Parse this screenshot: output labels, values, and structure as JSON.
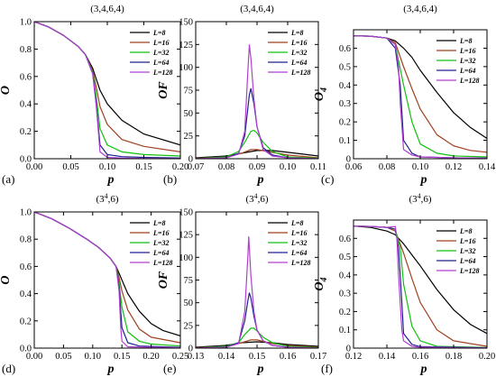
{
  "series_names": [
    "L=8",
    "L=16",
    "L=32",
    "L=64",
    "L=128"
  ],
  "series_colors": [
    "#000000",
    "#a0401f",
    "#10c010",
    "#202090",
    "#b040d0"
  ],
  "chart_data": [
    {
      "panel_label": "(a)",
      "title_base": "(3,4,6,4)",
      "title_sup": "",
      "type": "line",
      "xlabel": "p",
      "ylabel": "O",
      "xlim": [
        0.0,
        0.2
      ],
      "ylim": [
        0.0,
        1.0
      ],
      "xticks": [
        "0.00",
        "0.05",
        "0.10",
        "0.15",
        "0.20"
      ],
      "yticks": [
        "0.0",
        "0.2",
        "0.4",
        "0.6",
        "0.8",
        "1.0"
      ],
      "series": [
        {
          "name": "L=8",
          "x": [
            0,
            0.02,
            0.04,
            0.06,
            0.07,
            0.08,
            0.085,
            0.09,
            0.1,
            0.12,
            0.15,
            0.2
          ],
          "y": [
            1.0,
            0.96,
            0.9,
            0.82,
            0.76,
            0.66,
            0.58,
            0.5,
            0.4,
            0.28,
            0.18,
            0.1
          ]
        },
        {
          "name": "L=16",
          "x": [
            0,
            0.02,
            0.04,
            0.06,
            0.07,
            0.08,
            0.085,
            0.09,
            0.1,
            0.12,
            0.15,
            0.2
          ],
          "y": [
            1.0,
            0.96,
            0.9,
            0.82,
            0.76,
            0.64,
            0.52,
            0.38,
            0.25,
            0.14,
            0.09,
            0.05
          ]
        },
        {
          "name": "L=32",
          "x": [
            0,
            0.02,
            0.04,
            0.06,
            0.07,
            0.08,
            0.085,
            0.09,
            0.1,
            0.12,
            0.15,
            0.2
          ],
          "y": [
            1.0,
            0.96,
            0.9,
            0.82,
            0.76,
            0.63,
            0.45,
            0.22,
            0.1,
            0.05,
            0.03,
            0.02
          ]
        },
        {
          "name": "L=64",
          "x": [
            0,
            0.02,
            0.04,
            0.06,
            0.07,
            0.08,
            0.085,
            0.09,
            0.1,
            0.12,
            0.15,
            0.2
          ],
          "y": [
            1.0,
            0.96,
            0.9,
            0.82,
            0.76,
            0.62,
            0.4,
            0.1,
            0.03,
            0.015,
            0.01,
            0.005
          ]
        },
        {
          "name": "L=128",
          "x": [
            0,
            0.02,
            0.04,
            0.06,
            0.07,
            0.08,
            0.085,
            0.09,
            0.1,
            0.12,
            0.15,
            0.2
          ],
          "y": [
            1.0,
            0.96,
            0.9,
            0.82,
            0.76,
            0.62,
            0.38,
            0.05,
            0.01,
            0.005,
            0.002,
            0.001
          ]
        }
      ]
    },
    {
      "panel_label": "(b)",
      "title_base": "(3,4,6,4)",
      "title_sup": "",
      "type": "line",
      "xlabel": "p",
      "ylabel": "OF",
      "xlim": [
        0.07,
        0.11
      ],
      "ylim": [
        0,
        150
      ],
      "xticks": [
        "0.07",
        "0.08",
        "0.09",
        "0.10",
        "0.11"
      ],
      "yticks": [
        "0",
        "25",
        "50",
        "75",
        "100",
        "125",
        "150"
      ],
      "series": [
        {
          "name": "L=8",
          "x": [
            0.07,
            0.08,
            0.085,
            0.09,
            0.095,
            0.1,
            0.105,
            0.11
          ],
          "y": [
            1,
            3,
            6,
            9,
            9,
            7,
            5,
            3
          ]
        },
        {
          "name": "L=16",
          "x": [
            0.07,
            0.08,
            0.085,
            0.088,
            0.09,
            0.095,
            0.1,
            0.11
          ],
          "y": [
            0.5,
            2,
            6,
            10,
            10,
            7,
            4,
            1
          ]
        },
        {
          "name": "L=32",
          "x": [
            0.07,
            0.08,
            0.084,
            0.086,
            0.088,
            0.089,
            0.09,
            0.092,
            0.095,
            0.1,
            0.11
          ],
          "y": [
            0,
            2,
            8,
            18,
            30,
            31,
            28,
            18,
            8,
            2,
            0.5
          ]
        },
        {
          "name": "L=64",
          "x": [
            0.07,
            0.08,
            0.084,
            0.086,
            0.0875,
            0.088,
            0.089,
            0.09,
            0.092,
            0.095,
            0.1,
            0.11
          ],
          "y": [
            0,
            1,
            6,
            25,
            70,
            77,
            60,
            35,
            12,
            4,
            1,
            0
          ]
        },
        {
          "name": "L=128",
          "x": [
            0.07,
            0.08,
            0.084,
            0.086,
            0.087,
            0.0875,
            0.088,
            0.089,
            0.09,
            0.092,
            0.095,
            0.1,
            0.11
          ],
          "y": [
            0,
            1,
            5,
            30,
            95,
            125,
            110,
            65,
            35,
            10,
            3,
            1,
            0
          ]
        }
      ]
    },
    {
      "panel_label": "(c)",
      "title_base": "(3,4,6,4)",
      "title_sup": "",
      "type": "line",
      "xlabel": "p",
      "ylabel": "O",
      "ylabel_sub": "4",
      "xlim": [
        0.06,
        0.14
      ],
      "ylim": [
        0.0,
        0.7
      ],
      "xticks": [
        "0.06",
        "0.08",
        "0.10",
        "0.12",
        "0.14"
      ],
      "yticks": [
        "0",
        "0.1",
        "0.2",
        "0.3",
        "0.4",
        "0.5",
        "0.6"
      ],
      "series": [
        {
          "name": "L=8",
          "x": [
            0.06,
            0.07,
            0.08,
            0.085,
            0.09,
            0.095,
            0.1,
            0.11,
            0.12,
            0.13,
            0.14
          ],
          "y": [
            0.667,
            0.665,
            0.655,
            0.64,
            0.6,
            0.55,
            0.48,
            0.36,
            0.25,
            0.17,
            0.11
          ]
        },
        {
          "name": "L=16",
          "x": [
            0.06,
            0.07,
            0.08,
            0.085,
            0.09,
            0.095,
            0.1,
            0.11,
            0.12,
            0.13,
            0.14
          ],
          "y": [
            0.667,
            0.665,
            0.655,
            0.63,
            0.5,
            0.38,
            0.27,
            0.13,
            0.07,
            0.045,
            0.035
          ]
        },
        {
          "name": "L=32",
          "x": [
            0.06,
            0.07,
            0.08,
            0.085,
            0.09,
            0.095,
            0.1,
            0.11,
            0.12,
            0.14
          ],
          "y": [
            0.667,
            0.665,
            0.655,
            0.62,
            0.4,
            0.2,
            0.08,
            0.03,
            0.015,
            0.01
          ]
        },
        {
          "name": "L=64",
          "x": [
            0.06,
            0.07,
            0.08,
            0.085,
            0.088,
            0.09,
            0.095,
            0.1,
            0.12,
            0.14
          ],
          "y": [
            0.667,
            0.665,
            0.655,
            0.6,
            0.4,
            0.1,
            0.03,
            0.01,
            0.005,
            0.003
          ]
        },
        {
          "name": "L=128",
          "x": [
            0.06,
            0.07,
            0.08,
            0.085,
            0.087,
            0.088,
            0.09,
            0.095,
            0.1,
            0.12,
            0.14
          ],
          "y": [
            0.667,
            0.665,
            0.655,
            0.62,
            0.5,
            0.3,
            0.05,
            0.02,
            0.01,
            0.005,
            0.003
          ]
        }
      ]
    },
    {
      "panel_label": "(d)",
      "title_base": "(3",
      "title_sup": "4",
      "title_tail": ",6)",
      "type": "line",
      "xlabel": "p",
      "ylabel": "O",
      "xlim": [
        0.0,
        0.25
      ],
      "ylim": [
        0.0,
        1.0
      ],
      "xticks": [
        "0.00",
        "0.05",
        "0.10",
        "0.15",
        "0.20",
        "0.25"
      ],
      "yticks": [
        "0.0",
        "0.2",
        "0.4",
        "0.6",
        "0.8",
        "1.0"
      ],
      "series": [
        {
          "name": "L=8",
          "x": [
            0,
            0.03,
            0.06,
            0.09,
            0.11,
            0.13,
            0.14,
            0.145,
            0.15,
            0.16,
            0.18,
            0.2,
            0.22,
            0.25
          ],
          "y": [
            1.0,
            0.95,
            0.88,
            0.8,
            0.74,
            0.66,
            0.6,
            0.55,
            0.5,
            0.4,
            0.27,
            0.18,
            0.13,
            0.09
          ]
        },
        {
          "name": "L=16",
          "x": [
            0,
            0.03,
            0.06,
            0.09,
            0.11,
            0.13,
            0.14,
            0.145,
            0.15,
            0.16,
            0.18,
            0.2,
            0.25
          ],
          "y": [
            1.0,
            0.95,
            0.88,
            0.8,
            0.74,
            0.66,
            0.6,
            0.52,
            0.42,
            0.28,
            0.14,
            0.08,
            0.04
          ]
        },
        {
          "name": "L=32",
          "x": [
            0,
            0.03,
            0.06,
            0.09,
            0.11,
            0.13,
            0.14,
            0.145,
            0.15,
            0.16,
            0.18,
            0.2,
            0.25
          ],
          "y": [
            1.0,
            0.95,
            0.88,
            0.8,
            0.74,
            0.66,
            0.6,
            0.48,
            0.3,
            0.12,
            0.05,
            0.03,
            0.015
          ]
        },
        {
          "name": "L=64",
          "x": [
            0,
            0.03,
            0.06,
            0.09,
            0.11,
            0.13,
            0.14,
            0.145,
            0.15,
            0.16,
            0.18,
            0.25
          ],
          "y": [
            1.0,
            0.95,
            0.88,
            0.8,
            0.74,
            0.66,
            0.6,
            0.45,
            0.15,
            0.04,
            0.015,
            0.005
          ]
        },
        {
          "name": "L=128",
          "x": [
            0,
            0.03,
            0.06,
            0.09,
            0.11,
            0.13,
            0.14,
            0.145,
            0.148,
            0.15,
            0.16,
            0.25
          ],
          "y": [
            1.0,
            0.95,
            0.88,
            0.8,
            0.74,
            0.66,
            0.6,
            0.42,
            0.15,
            0.05,
            0.01,
            0.002
          ]
        }
      ]
    },
    {
      "panel_label": "(e)",
      "title_base": "(3",
      "title_sup": "4",
      "title_tail": ",6)",
      "type": "line",
      "xlabel": "p",
      "ylabel": "OF",
      "xlim": [
        0.13,
        0.17
      ],
      "ylim": [
        0,
        150
      ],
      "xticks": [
        "0.13",
        "0.14",
        "0.15",
        "0.16",
        "0.17"
      ],
      "yticks": [
        "0",
        "25",
        "50",
        "75",
        "100",
        "125",
        "150"
      ],
      "series": [
        {
          "name": "L=8",
          "x": [
            0.13,
            0.14,
            0.145,
            0.15,
            0.155,
            0.16,
            0.17
          ],
          "y": [
            1,
            3,
            6,
            7,
            6,
            4,
            2
          ]
        },
        {
          "name": "L=16",
          "x": [
            0.13,
            0.14,
            0.145,
            0.148,
            0.15,
            0.155,
            0.16,
            0.17
          ],
          "y": [
            0.5,
            2,
            6,
            9,
            9,
            5,
            3,
            1
          ]
        },
        {
          "name": "L=32",
          "x": [
            0.13,
            0.14,
            0.144,
            0.146,
            0.148,
            0.149,
            0.15,
            0.152,
            0.155,
            0.16,
            0.17
          ],
          "y": [
            0,
            2,
            6,
            15,
            22,
            22,
            19,
            12,
            6,
            2,
            0.5
          ]
        },
        {
          "name": "L=64",
          "x": [
            0.13,
            0.14,
            0.144,
            0.146,
            0.147,
            0.1475,
            0.148,
            0.149,
            0.15,
            0.152,
            0.155,
            0.16,
            0.17
          ],
          "y": [
            0,
            1,
            6,
            30,
            52,
            61,
            55,
            35,
            20,
            8,
            3,
            1,
            0
          ]
        },
        {
          "name": "L=128",
          "x": [
            0.13,
            0.14,
            0.144,
            0.146,
            0.147,
            0.1473,
            0.148,
            0.149,
            0.15,
            0.152,
            0.155,
            0.16,
            0.17
          ],
          "y": [
            0,
            1,
            5,
            40,
            100,
            123,
            80,
            40,
            20,
            8,
            3,
            1,
            0
          ]
        }
      ]
    },
    {
      "panel_label": "(f)",
      "title_base": "(3",
      "title_sup": "4",
      "title_tail": ",6)",
      "type": "line",
      "xlabel": "p",
      "ylabel": "O",
      "ylabel_sub": "4",
      "xlim": [
        0.12,
        0.2
      ],
      "ylim": [
        0.0,
        0.7
      ],
      "xticks": [
        "0.12",
        "0.14",
        "0.16",
        "0.18",
        "0.20"
      ],
      "yticks": [
        "0",
        "0.1",
        "0.2",
        "0.3",
        "0.4",
        "0.5",
        "0.6"
      ],
      "series": [
        {
          "name": "L=8",
          "x": [
            0.12,
            0.13,
            0.14,
            0.145,
            0.15,
            0.16,
            0.17,
            0.18,
            0.19,
            0.2
          ],
          "y": [
            0.667,
            0.66,
            0.64,
            0.62,
            0.57,
            0.45,
            0.32,
            0.21,
            0.13,
            0.08
          ]
        },
        {
          "name": "L=16",
          "x": [
            0.12,
            0.13,
            0.14,
            0.145,
            0.15,
            0.155,
            0.16,
            0.17,
            0.18,
            0.2
          ],
          "y": [
            0.667,
            0.665,
            0.66,
            0.64,
            0.52,
            0.38,
            0.25,
            0.1,
            0.04,
            0.01
          ]
        },
        {
          "name": "L=32",
          "x": [
            0.12,
            0.13,
            0.14,
            0.145,
            0.148,
            0.15,
            0.155,
            0.16,
            0.17,
            0.2
          ],
          "y": [
            0.667,
            0.665,
            0.66,
            0.65,
            0.55,
            0.35,
            0.12,
            0.04,
            0.01,
            0.003
          ]
        },
        {
          "name": "L=64",
          "x": [
            0.12,
            0.13,
            0.14,
            0.145,
            0.147,
            0.149,
            0.15,
            0.155,
            0.16,
            0.2
          ],
          "y": [
            0.667,
            0.665,
            0.66,
            0.65,
            0.55,
            0.25,
            0.08,
            0.02,
            0.008,
            0.002
          ]
        },
        {
          "name": "L=128",
          "x": [
            0.12,
            0.13,
            0.14,
            0.145,
            0.146,
            0.147,
            0.149,
            0.15,
            0.155,
            0.16,
            0.2
          ],
          "y": [
            0.667,
            0.665,
            0.66,
            0.665,
            0.6,
            0.4,
            0.1,
            0.04,
            0.01,
            0.005,
            0.001
          ]
        }
      ]
    }
  ]
}
